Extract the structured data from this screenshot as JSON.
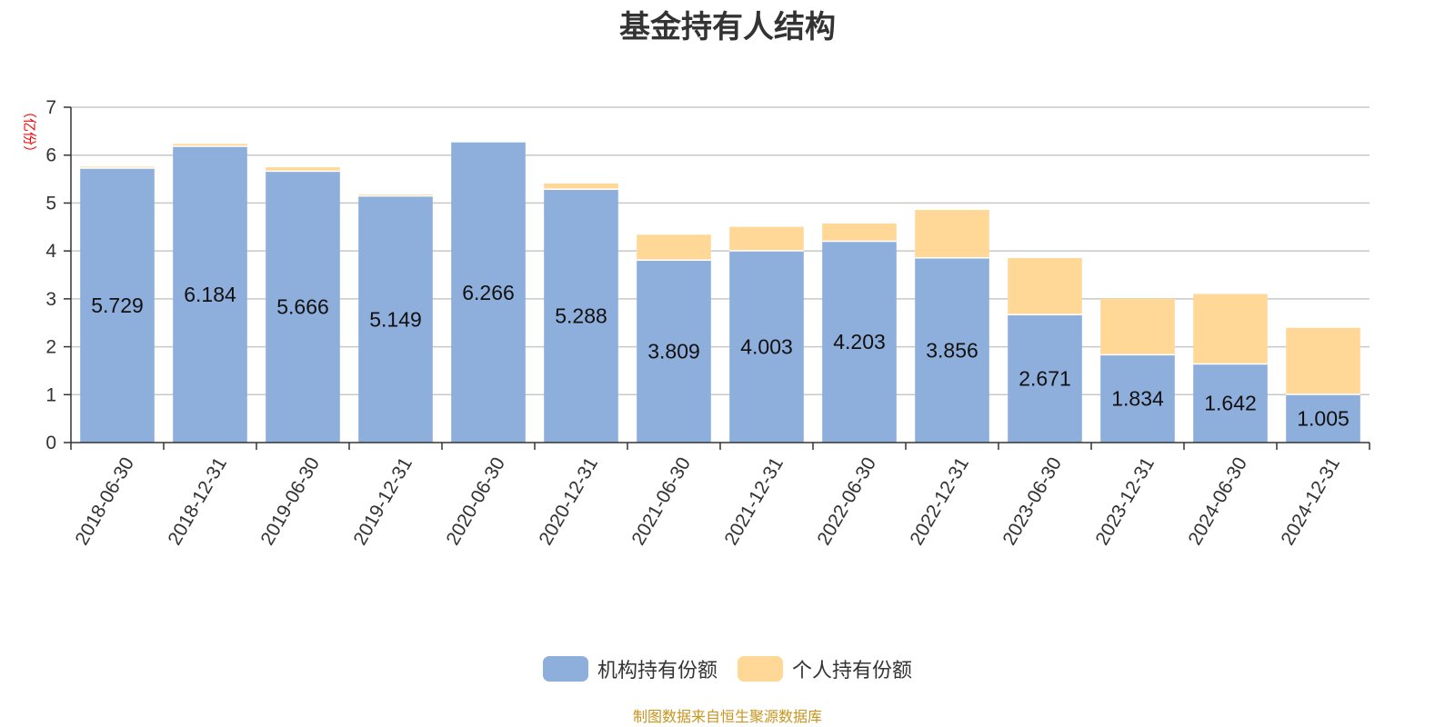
{
  "chart_data": {
    "type": "bar",
    "stacked": true,
    "title": "基金持有人结构",
    "ylabel": "（亿份）",
    "ylim": [
      0,
      7
    ],
    "yticks": [
      0,
      1,
      2,
      3,
      4,
      5,
      6,
      7
    ],
    "grid": true,
    "legend_position": "bottom",
    "categories": [
      "2018-06-30",
      "2018-12-31",
      "2019-06-30",
      "2019-12-31",
      "2020-06-30",
      "2020-12-31",
      "2021-06-30",
      "2021-12-31",
      "2022-06-30",
      "2022-12-31",
      "2023-06-30",
      "2023-12-31",
      "2024-06-30",
      "2024-12-31"
    ],
    "series": [
      {
        "name": "机构持有份额",
        "color": "#8eaedb",
        "values": [
          5.729,
          6.184,
          5.666,
          5.149,
          6.266,
          5.288,
          3.809,
          4.003,
          4.203,
          3.856,
          2.671,
          1.834,
          1.642,
          1.005
        ],
        "labels_shown": true
      },
      {
        "name": "个人持有份额",
        "color": "#ffd898",
        "values": [
          0.03,
          0.05,
          0.08,
          0.03,
          0.0,
          0.12,
          0.53,
          0.5,
          0.37,
          1.0,
          1.18,
          1.17,
          1.46,
          1.39
        ],
        "labels_shown": false
      }
    ]
  },
  "footer": {
    "source": "制图数据来自恒生聚源数据库"
  }
}
